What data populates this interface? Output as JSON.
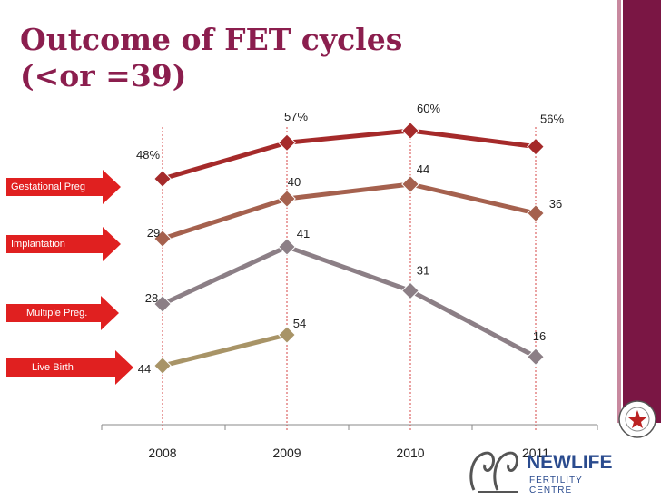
{
  "title_line1": "Outcome of FET cycles",
  "title_line2": "(<or =39)",
  "colors": {
    "gestational": "#a52a2a",
    "implantation": "#a5614e",
    "multiple": "#8c7f86",
    "live_birth": "#a89467",
    "arrow": "#e02020",
    "brand": "#7a1644"
  },
  "arrows": [
    {
      "label": "Gestational Preg"
    },
    {
      "label": "Implantation"
    },
    {
      "label": "Multiple Preg."
    },
    {
      "label": "Live Birth"
    }
  ],
  "logo": {
    "name": "NEWLIFE",
    "sub": "FERTILITY CENTRE"
  },
  "chart_data": {
    "type": "line",
    "categories": [
      "2008",
      "2009",
      "2010",
      "2011"
    ],
    "series": [
      {
        "name": "Gestational Preg",
        "values": [
          48,
          57,
          60,
          56
        ],
        "labels": [
          "48%",
          "57%",
          "60%",
          "56%"
        ]
      },
      {
        "name": "Implantation",
        "values": [
          29,
          40,
          44,
          36
        ],
        "labels": [
          "29",
          "40",
          "44",
          "36"
        ]
      },
      {
        "name": "Multiple Preg.",
        "values": [
          28,
          41,
          31,
          16
        ],
        "labels": [
          "28",
          "41",
          "31",
          "16"
        ]
      },
      {
        "name": "Live Birth",
        "values": [
          44,
          54,
          null,
          null
        ],
        "labels": [
          "44",
          "54",
          "",
          ""
        ]
      }
    ],
    "legend": "left, as arrow call-outs",
    "grid": false
  }
}
